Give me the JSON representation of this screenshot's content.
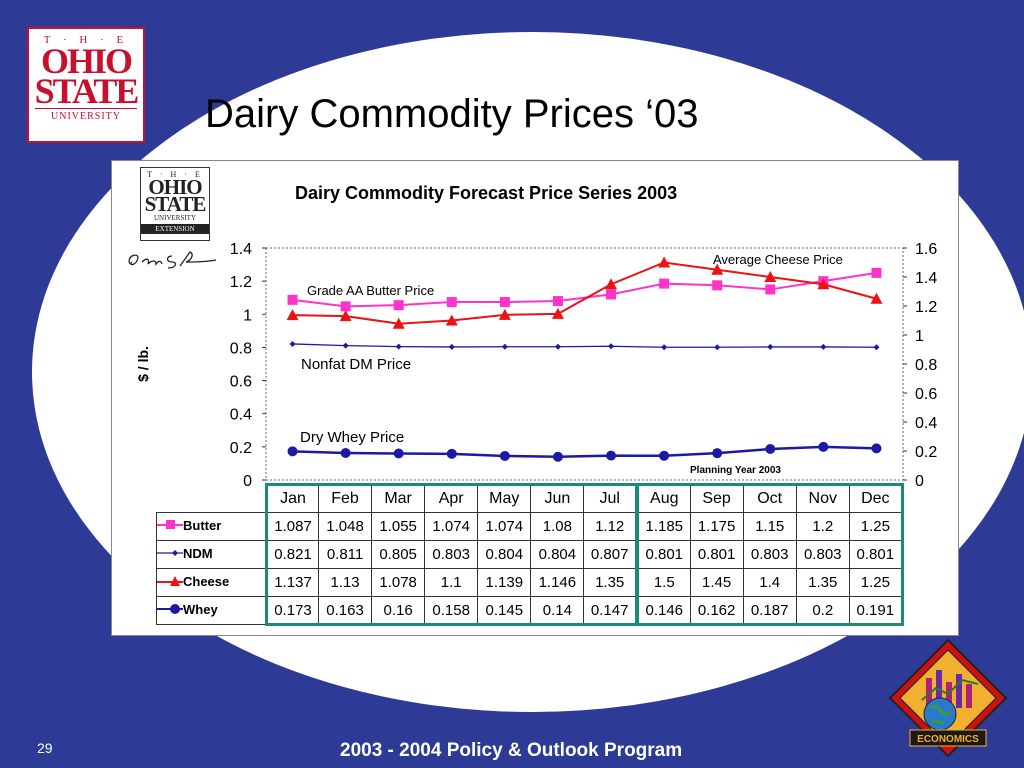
{
  "slide": {
    "title": "Dairy Commodity Prices ‘03",
    "footer": "2003 - 2004 Policy & Outlook Program",
    "page_number": "29",
    "logo": {
      "the": "T · H · E",
      "line1": "OHIO",
      "line2": "STATE",
      "univ": "UNIVERSITY"
    },
    "ext_logo": {
      "the": "T · H · E",
      "line1": "OHIO",
      "line2": "STATE",
      "univ": "UNIVERSITY",
      "ext": "EXTENSION"
    },
    "econ_logo": "ECONOMICS",
    "colors": {
      "background": "#2d3a96",
      "ellipse": "#ffffff",
      "butter": "#ff33cc",
      "ndm": "#1a1aa6",
      "cheese": "#ee1111",
      "whey": "#1a1aa6",
      "table_divider": "#1a8a7a"
    }
  },
  "chart_data": {
    "type": "line",
    "title": "Dairy Commodity Forecast Price Series 2003",
    "ylabel": "$ / lb.",
    "ylim_left": [
      0,
      1.4
    ],
    "ylim_right": [
      0,
      1.6
    ],
    "left_ticks": [
      "0",
      "0.2",
      "0.4",
      "0.6",
      "0.8",
      "1",
      "1.2",
      "1.4"
    ],
    "right_ticks": [
      "0",
      "0.2",
      "0.4",
      "0.6",
      "0.8",
      "1",
      "1.2",
      "1.4",
      "1.6"
    ],
    "categories": [
      "Jan",
      "Feb",
      "Mar",
      "Apr",
      "May",
      "Jun",
      "Jul",
      "Aug",
      "Sep",
      "Oct",
      "Nov",
      "Dec"
    ],
    "annotations": {
      "butter": "Grade AA Butter Price",
      "ndm": "Nonfat DM Price",
      "cheese": "Average Cheese Price",
      "whey": "Dry Whey Price",
      "planning": "Planning Year 2003"
    },
    "series": [
      {
        "name": "Butter",
        "axis": "left",
        "marker": "square",
        "values": [
          1.087,
          1.048,
          1.055,
          1.074,
          1.074,
          1.08,
          1.12,
          1.185,
          1.175,
          1.15,
          1.2,
          1.25
        ],
        "labels": [
          "1.087",
          "1.048",
          "1.055",
          "1.074",
          "1.074",
          "1.08",
          "1.12",
          "1.185",
          "1.175",
          "1.15",
          "1.2",
          "1.25"
        ]
      },
      {
        "name": "NDM",
        "axis": "left",
        "marker": "diamond",
        "values": [
          0.821,
          0.811,
          0.805,
          0.803,
          0.804,
          0.804,
          0.807,
          0.801,
          0.801,
          0.803,
          0.803,
          0.801
        ],
        "labels": [
          "0.821",
          "0.811",
          "0.805",
          "0.803",
          "0.804",
          "0.804",
          "0.807",
          "0.801",
          "0.801",
          "0.803",
          "0.803",
          "0.801"
        ]
      },
      {
        "name": "Cheese",
        "axis": "right",
        "marker": "triangle",
        "values": [
          1.137,
          1.13,
          1.078,
          1.1,
          1.139,
          1.146,
          1.35,
          1.5,
          1.45,
          1.4,
          1.35,
          1.25
        ],
        "labels": [
          "1.137",
          "1.13",
          "1.078",
          "1.1",
          "1.139",
          "1.146",
          "1.35",
          "1.5",
          "1.45",
          "1.4",
          "1.35",
          "1.25"
        ]
      },
      {
        "name": "Whey",
        "axis": "left",
        "marker": "circle",
        "values": [
          0.173,
          0.163,
          0.16,
          0.158,
          0.145,
          0.14,
          0.147,
          0.146,
          0.162,
          0.187,
          0.2,
          0.191
        ],
        "labels": [
          "0.173",
          "0.163",
          "0.16",
          "0.158",
          "0.145",
          "0.14",
          "0.147",
          "0.146",
          "0.162",
          "0.187",
          "0.2",
          "0.191"
        ]
      }
    ]
  }
}
